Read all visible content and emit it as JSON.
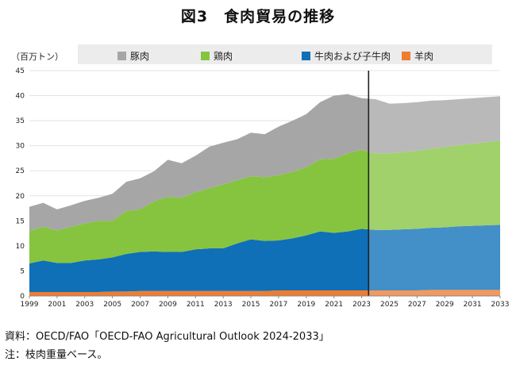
{
  "title": "図3　食肉貿易の推移",
  "footer": {
    "source": "資料：OECD/FAO「OECD-FAO Agricultural Outlook 2024-2033」",
    "note": "注：枝肉重量ベース。"
  },
  "colors": {
    "pork": "#a6a6a6",
    "poultry": "#86c440",
    "beef": "#0f70b8",
    "sheep": "#ef7d31",
    "projection_shade": "#ffffff",
    "divider": "#222222"
  },
  "chart_data": {
    "type": "area",
    "stacked": true,
    "unit_label": "（百万トン）",
    "x": [
      1999,
      2000,
      2001,
      2002,
      2003,
      2004,
      2005,
      2006,
      2007,
      2008,
      2009,
      2010,
      2011,
      2012,
      2013,
      2014,
      2015,
      2016,
      2017,
      2018,
      2019,
      2020,
      2021,
      2022,
      2023,
      2024,
      2025,
      2026,
      2027,
      2028,
      2029,
      2030,
      2031,
      2032,
      2033
    ],
    "x_tick_labels": [
      "1999",
      "2001",
      "2003",
      "2005",
      "2007",
      "2009",
      "2011",
      "2013",
      "2015",
      "2017",
      "2019",
      "2021",
      "2023",
      "2025",
      "2027",
      "2029",
      "2031",
      "2033"
    ],
    "ylim": [
      0,
      45
    ],
    "y_ticks": [
      0,
      5,
      10,
      15,
      20,
      25,
      30,
      35,
      40,
      45
    ],
    "projection_start": 2023.5,
    "legend_position": "top",
    "series": [
      {
        "name": "羊肉",
        "color_key": "sheep",
        "values": [
          0.8,
          0.8,
          0.8,
          0.8,
          0.8,
          0.8,
          0.9,
          0.9,
          1.0,
          1.0,
          1.0,
          1.0,
          1.0,
          1.0,
          1.0,
          1.0,
          1.0,
          1.0,
          1.1,
          1.1,
          1.1,
          1.1,
          1.1,
          1.1,
          1.1,
          1.1,
          1.1,
          1.1,
          1.1,
          1.2,
          1.2,
          1.2,
          1.2,
          1.2,
          1.2
        ]
      },
      {
        "name": "牛肉および子牛肉",
        "color_key": "beef",
        "values": [
          5.7,
          6.3,
          5.8,
          5.8,
          6.3,
          6.5,
          6.8,
          7.5,
          7.8,
          7.9,
          7.8,
          7.8,
          8.3,
          8.5,
          8.5,
          9.5,
          10.3,
          10.0,
          10.0,
          10.4,
          11.0,
          11.8,
          11.5,
          11.8,
          12.3,
          12.1,
          12.1,
          12.2,
          12.3,
          12.4,
          12.5,
          12.7,
          12.8,
          12.9,
          13.0
        ]
      },
      {
        "name": "鶏肉",
        "color_key": "poultry",
        "values": [
          6.5,
          6.7,
          6.5,
          7.2,
          7.4,
          7.7,
          7.3,
          8.6,
          8.5,
          10.0,
          11.0,
          10.8,
          11.4,
          12.0,
          12.8,
          12.6,
          12.6,
          12.7,
          13.0,
          13.3,
          13.6,
          14.4,
          14.8,
          15.6,
          15.8,
          15.2,
          15.3,
          15.4,
          15.6,
          15.8,
          16.0,
          16.2,
          16.4,
          16.6,
          16.8
        ]
      },
      {
        "name": "豚肉",
        "color_key": "pork",
        "values": [
          4.8,
          4.8,
          4.2,
          4.3,
          4.5,
          4.6,
          5.4,
          5.8,
          6.2,
          6.0,
          7.4,
          6.9,
          7.3,
          8.3,
          8.3,
          8.2,
          8.7,
          8.6,
          9.7,
          10.2,
          10.6,
          11.4,
          12.6,
          11.8,
          10.3,
          10.9,
          9.9,
          9.8,
          9.7,
          9.6,
          9.4,
          9.2,
          9.1,
          9.0,
          8.9
        ]
      }
    ]
  }
}
